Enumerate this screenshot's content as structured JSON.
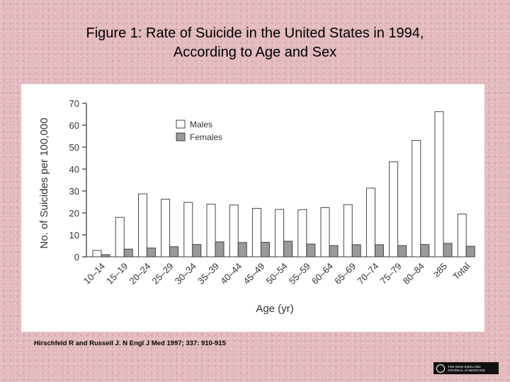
{
  "title_line1": "Figure 1: Rate of Suicide in the United States in 1994,",
  "title_line2": "According to Age and Sex",
  "citation": "Hirschfeld R and Russell J. N Engl J Med 1997; 337: 910-915",
  "logo_text": "THE NEW ENGLAND JOURNAL of MEDICINE",
  "colors": {
    "males": "#ffffff",
    "females": "#9a9a9a",
    "stroke": "#333333"
  },
  "chart_data": {
    "type": "bar",
    "title": "",
    "xlabel": "Age (yr)",
    "ylabel": "No. of Suicides per 100,000",
    "ylim": [
      0,
      70
    ],
    "yticks": [
      0,
      10,
      20,
      30,
      40,
      50,
      60,
      70
    ],
    "legend_position": "top-left",
    "grid": false,
    "categories": [
      "10–14",
      "15–19",
      "20–24",
      "25–29",
      "30–34",
      "35–39",
      "40–44",
      "45–49",
      "50–54",
      "55–59",
      "60–64",
      "65–69",
      "70–74",
      "75–79",
      "80–84",
      "≥85",
      "Total"
    ],
    "series": [
      {
        "name": "Males",
        "values": [
          2.9,
          18,
          28.7,
          26.3,
          24.8,
          24,
          23.6,
          22.1,
          21.6,
          21.5,
          22.4,
          23.8,
          31.3,
          43.3,
          53.1,
          66.2,
          19.5
        ]
      },
      {
        "name": "Females",
        "values": [
          1,
          3.5,
          4,
          4.6,
          5.6,
          6.8,
          6.5,
          6.6,
          7.1,
          5.8,
          5.1,
          5.5,
          5.5,
          5.1,
          5.6,
          6.1,
          4.8
        ]
      }
    ]
  }
}
